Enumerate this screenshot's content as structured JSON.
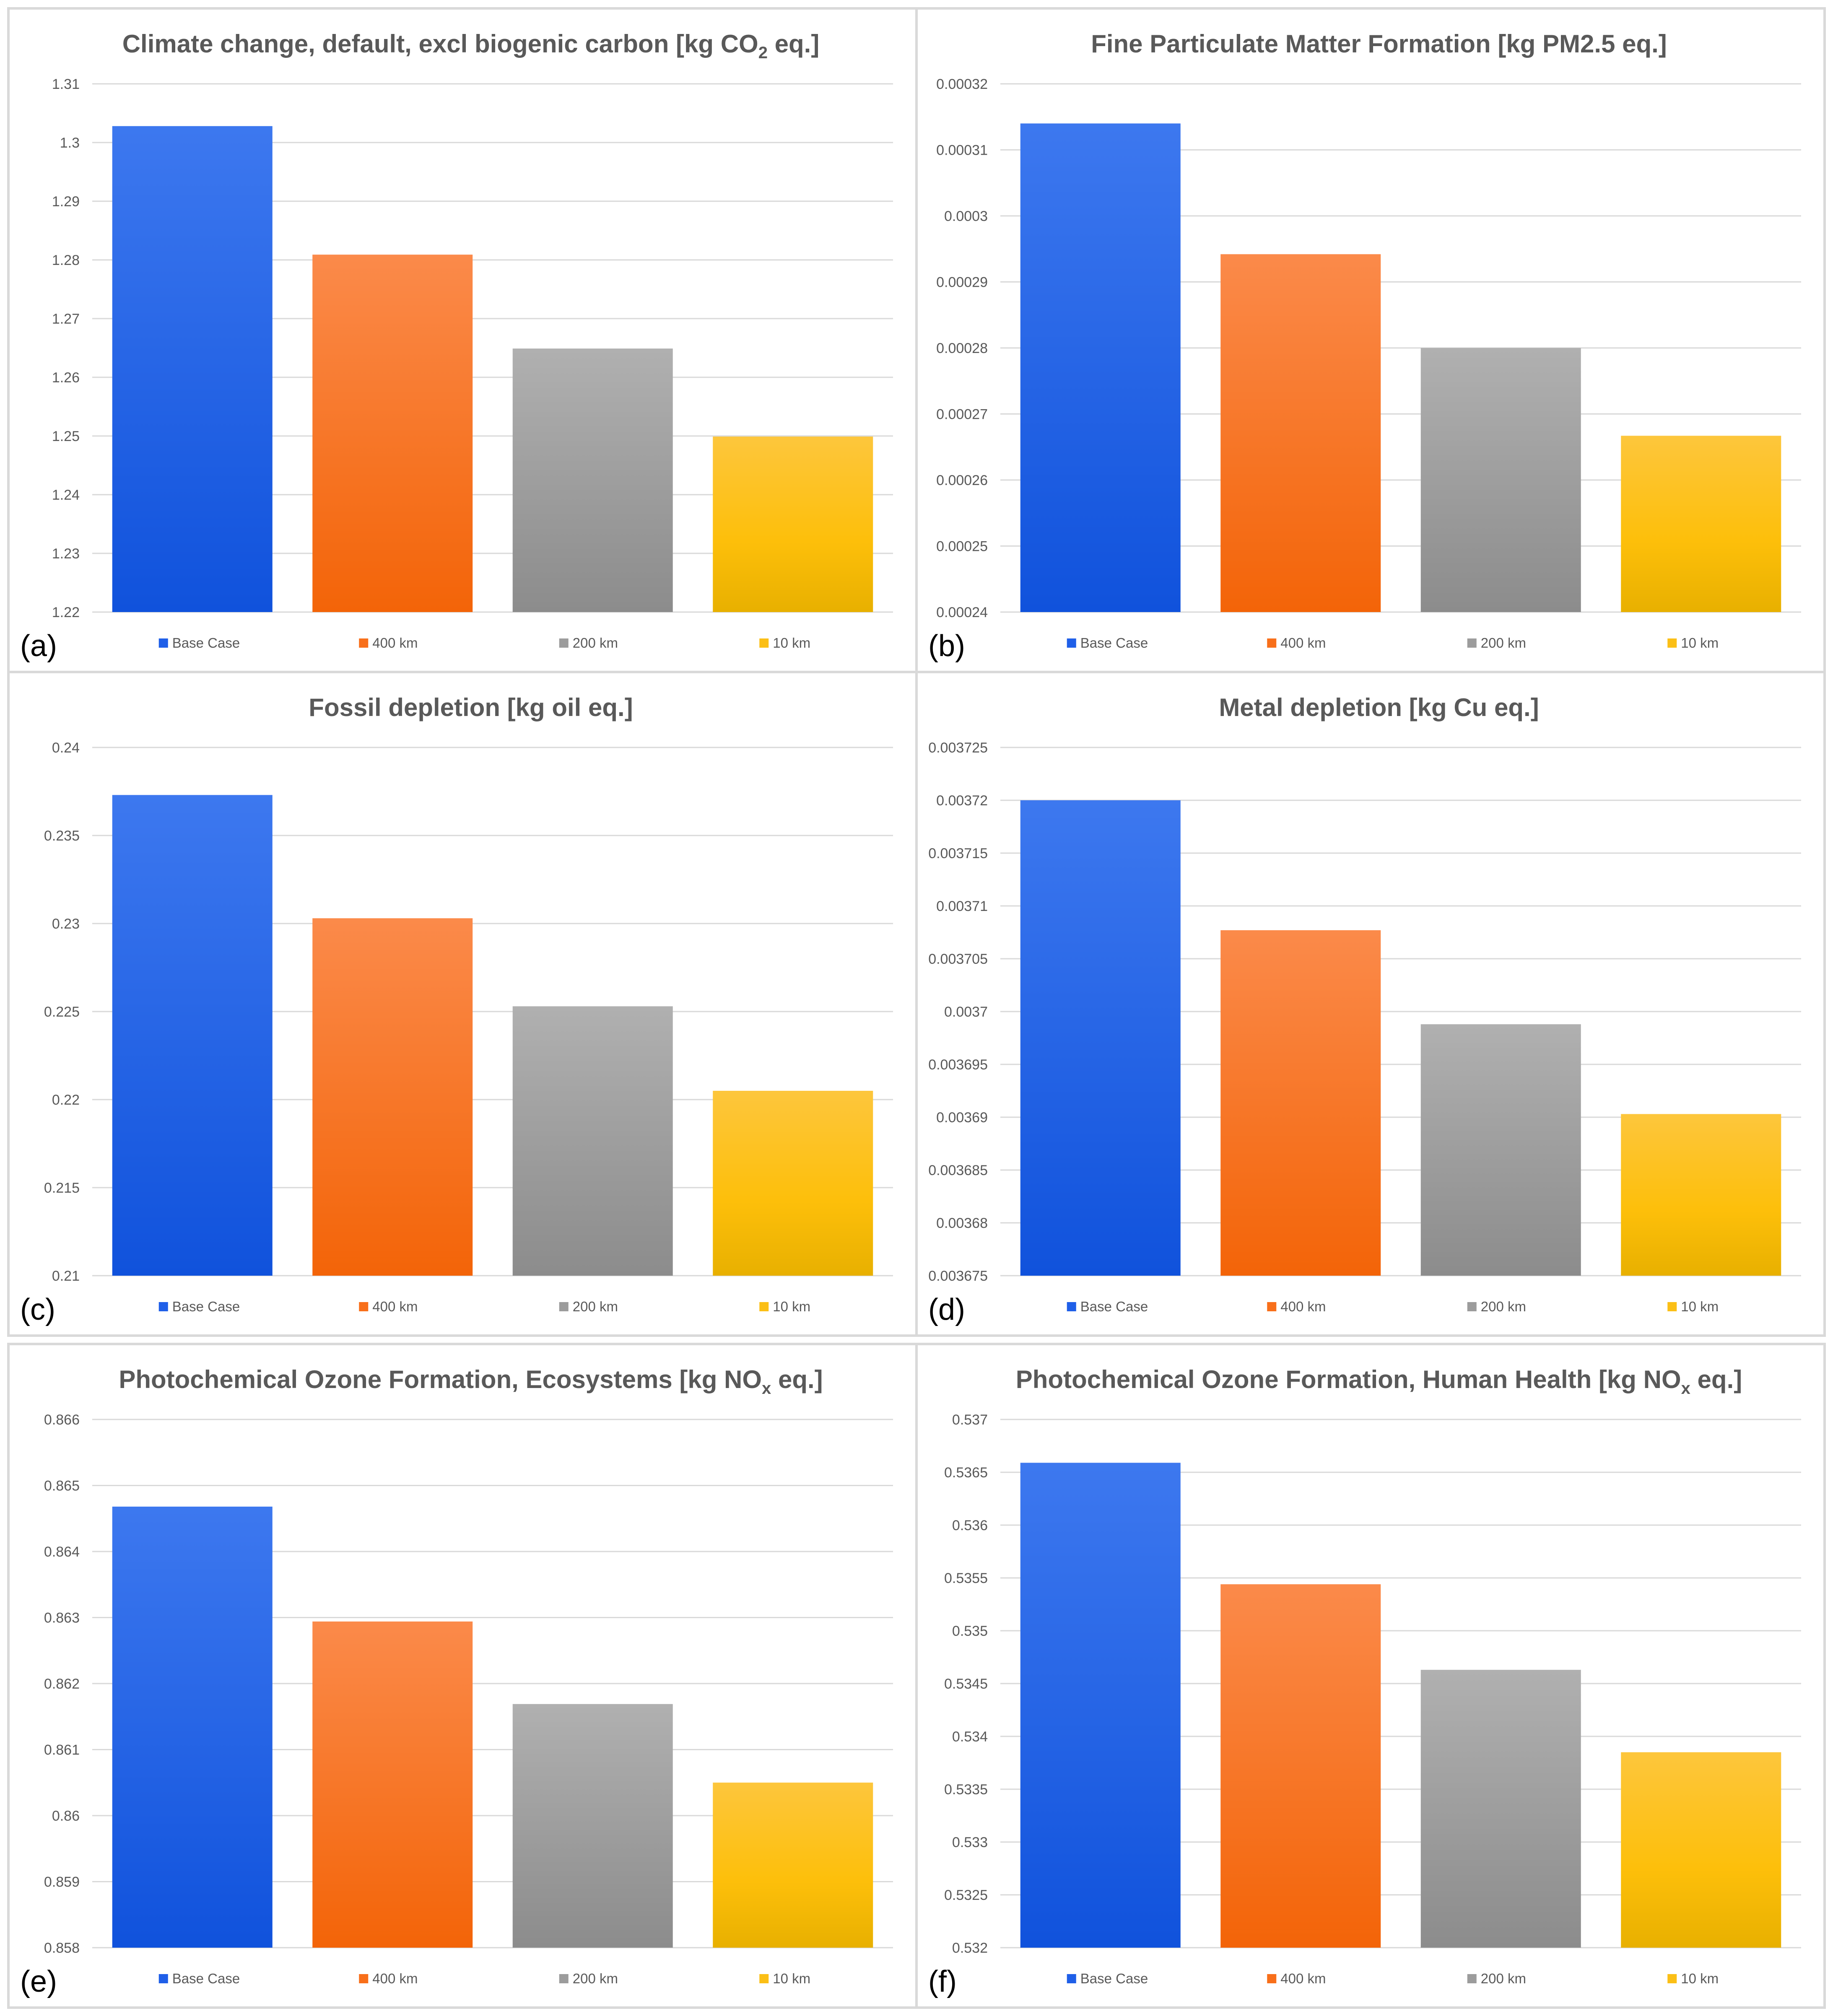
{
  "figure": {
    "legend": [
      {
        "name": "Base Case",
        "color": "#1f5fe8"
      },
      {
        "name": "400 km",
        "color": "#f86f1a"
      },
      {
        "name": "200 km",
        "color": "#9c9c9c"
      },
      {
        "name": "10 km",
        "color": "#fbbf16"
      }
    ]
  },
  "chart_data": [
    {
      "type": "bar",
      "panel_label": "(a)",
      "title": "Climate change, default, excl biogenic carbon [kg CO",
      "title_sub": "2",
      "title_suffix": " eq.]",
      "categories": [
        "Base Case",
        "400 km",
        "200 km",
        "10 km"
      ],
      "values": [
        1.3028,
        1.2809,
        1.2649,
        1.2499
      ],
      "ylim": [
        1.22,
        1.31
      ],
      "ticks": [
        "1.22",
        "1.23",
        "1.24",
        "1.25",
        "1.26",
        "1.27",
        "1.28",
        "1.29",
        "1.3",
        "1.31"
      ],
      "xlabel": "",
      "ylabel": "",
      "legend_position": "bottom"
    },
    {
      "type": "bar",
      "panel_label": "(b)",
      "title": "Fine Particulate Matter Formation [kg PM2.5 eq.]",
      "title_sub": "",
      "title_suffix": "",
      "categories": [
        "Base Case",
        "400 km",
        "200 km",
        "10 km"
      ],
      "values": [
        0.000314,
        0.0002942,
        0.00028,
        0.0002667
      ],
      "ylim": [
        0.00024,
        0.00032
      ],
      "ticks": [
        "0.00024",
        "0.00025",
        "0.00026",
        "0.00027",
        "0.00028",
        "0.00029",
        "0.0003",
        "0.00031",
        "0.00032"
      ],
      "xlabel": "",
      "ylabel": "",
      "legend_position": "bottom"
    },
    {
      "type": "bar",
      "panel_label": "(c)",
      "title": "Fossil depletion [kg oil eq.]",
      "title_sub": "",
      "title_suffix": "",
      "categories": [
        "Base Case",
        "400 km",
        "200 km",
        "10 km"
      ],
      "values": [
        0.2373,
        0.2303,
        0.2253,
        0.2205
      ],
      "ylim": [
        0.21,
        0.24
      ],
      "ticks": [
        "0.21",
        "0.215",
        "0.22",
        "0.225",
        "0.23",
        "0.235",
        "0.24"
      ],
      "xlabel": "",
      "ylabel": "",
      "legend_position": "bottom"
    },
    {
      "type": "bar",
      "panel_label": "(d)",
      "title": "Metal depletion [kg Cu eq.]",
      "title_sub": "",
      "title_suffix": "",
      "categories": [
        "Base Case",
        "400 km",
        "200 km",
        "10 km"
      ],
      "values": [
        0.00372,
        0.0037077,
        0.0036988,
        0.0036903
      ],
      "ylim": [
        0.003675,
        0.003725
      ],
      "ticks": [
        "0.003675",
        "0.00368",
        "0.003685",
        "0.00369",
        "0.003695",
        "0.0037",
        "0.003705",
        "0.00371",
        "0.003715",
        "0.00372",
        "0.003725"
      ],
      "xlabel": "",
      "ylabel": "",
      "legend_position": "bottom"
    },
    {
      "type": "bar",
      "panel_label": "(e)",
      "title": "Photochemical Ozone Formation, Ecosystems [kg NO",
      "title_sub": "x",
      "title_suffix": " eq.]",
      "categories": [
        "Base Case",
        "400 km",
        "200 km",
        "10 km"
      ],
      "values": [
        0.86468,
        0.86294,
        0.86169,
        0.8605
      ],
      "ylim": [
        0.858,
        0.866
      ],
      "ticks": [
        "0.858",
        "0.859",
        "0.86",
        "0.861",
        "0.862",
        "0.863",
        "0.864",
        "0.865",
        "0.866"
      ],
      "xlabel": "",
      "ylabel": "",
      "legend_position": "bottom"
    },
    {
      "type": "bar",
      "panel_label": "(f)",
      "title": "Photochemical Ozone Formation, Human Health [kg NO",
      "title_sub": "x",
      "title_suffix": " eq.]",
      "categories": [
        "Base Case",
        "400 km",
        "200 km",
        "10 km"
      ],
      "values": [
        0.53659,
        0.53544,
        0.53463,
        0.53385
      ],
      "ylim": [
        0.532,
        0.537
      ],
      "ticks": [
        "0.532",
        "0.5325",
        "0.533",
        "0.5335",
        "0.534",
        "0.5345",
        "0.535",
        "0.5355",
        "0.536",
        "0.5365",
        "0.537"
      ],
      "xlabel": "",
      "ylabel": "",
      "legend_position": "bottom"
    }
  ]
}
